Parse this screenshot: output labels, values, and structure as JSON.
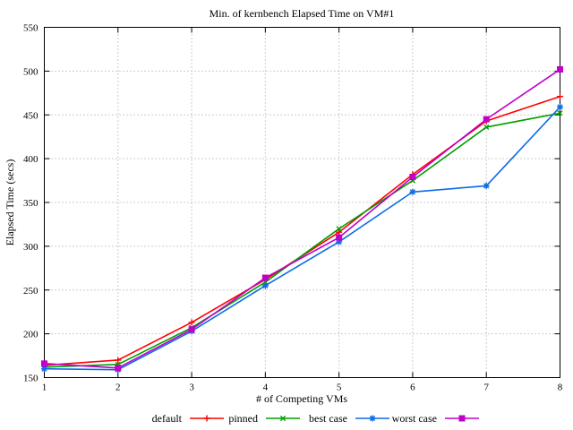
{
  "chart_data": {
    "type": "line",
    "title": "Min. of kernbench Elapsed Time on VM#1",
    "xlabel": "# of Competing VMs",
    "ylabel": "Elapsed Time (secs)",
    "x": [
      1,
      2,
      3,
      4,
      5,
      6,
      7,
      8
    ],
    "xlim": [
      1,
      8
    ],
    "ylim": [
      150,
      550
    ],
    "xticks": [
      1,
      2,
      3,
      4,
      5,
      6,
      7,
      8
    ],
    "yticks": [
      150,
      200,
      250,
      300,
      350,
      400,
      450,
      500,
      550
    ],
    "grid": "dotted",
    "legend_position": "bottom-center-horizontal",
    "series": [
      {
        "name": "default",
        "color": "#ff0000",
        "marker": "plus",
        "values": [
          164,
          170,
          213,
          262,
          316,
          382,
          443,
          471
        ]
      },
      {
        "name": "pinned",
        "color": "#00a000",
        "marker": "cross",
        "values": [
          162,
          165,
          207,
          259,
          320,
          375,
          436,
          452
        ]
      },
      {
        "name": "best case",
        "color": "#0d6be8",
        "marker": "asterisk",
        "values": [
          160,
          159,
          203,
          255,
          305,
          362,
          369,
          459
        ]
      },
      {
        "name": "worst case",
        "color": "#c000c8",
        "marker": "square",
        "values": [
          166,
          161,
          205,
          264,
          310,
          379,
          445,
          502
        ]
      }
    ]
  },
  "colors": {
    "background": "#ffffff",
    "axis": "#000000",
    "grid": "#9a9a9a",
    "text": "#000000"
  }
}
